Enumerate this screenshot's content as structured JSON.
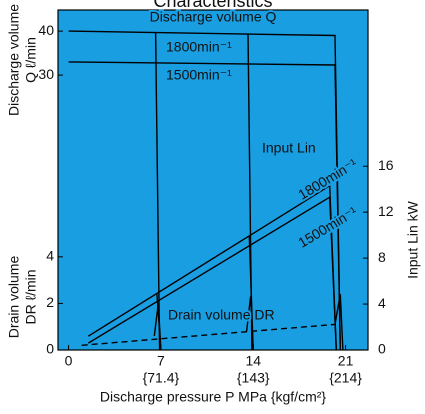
{
  "chart_data": [
    {
      "type": "line",
      "title": "Characteristics",
      "xlabel": "Discharge pressure P MPa {kgf/cm²}",
      "ylabel": [
        "Discharge volume",
        "Q ℓ/min"
      ],
      "y_axis": "left",
      "xlim": [
        -0.8,
        22.7
      ],
      "xticks": [
        0,
        7,
        14,
        21
      ],
      "xticks_kgf": [
        {
          "value": 7,
          "label": "{71.4}"
        },
        {
          "value": 14,
          "label": "{143}"
        },
        {
          "value": 21,
          "label": "{214}"
        }
      ],
      "ylim": [
        -32.5,
        44.8
      ],
      "yticks": [
        30,
        40
      ],
      "annotations": [
        "Discharge volume Q",
        "1800min⁻¹",
        "1500min⁻¹"
      ],
      "series": [
        {
          "x": [
            0,
            20.2,
            20.6
          ],
          "values": [
            40,
            39,
            -32.5
          ],
          "color": "#000000"
        },
        {
          "x": [
            0,
            20.2,
            20.6
          ],
          "values": [
            33,
            32.3,
            -32.5
          ],
          "color": "#000000"
        },
        {
          "x": [
            6.6,
            6.9
          ],
          "values": [
            39.8,
            -32.5
          ],
          "color": "#000000"
        },
        {
          "x": [
            13.6,
            13.9
          ],
          "values": [
            39.4,
            -32.5
          ],
          "color": "#000000"
        }
      ]
    },
    {
      "type": "line",
      "ylabel": [
        "Drain volume",
        "DR ℓ/min"
      ],
      "y_axis": "left",
      "xlim": [
        -0.8,
        22.7
      ],
      "ylim": [
        0,
        14.6
      ],
      "yticks": [
        0,
        2,
        4
      ],
      "annotations": [
        "Drain volume DR"
      ],
      "series": [
        {
          "x": [
            1,
            20.2
          ],
          "values": [
            0.2,
            1.1
          ],
          "color": "#000000",
          "dash": true
        },
        {
          "x": [
            6.5,
            6.8,
            7
          ],
          "values": [
            0.6,
            2,
            0
          ],
          "color": "#000000"
        },
        {
          "x": [
            13.5,
            13.8,
            14
          ],
          "values": [
            0.8,
            2.3,
            0
          ],
          "color": "#000000"
        },
        {
          "x": [
            20.2,
            20.6,
            20.8
          ],
          "values": [
            1.1,
            2.4,
            0
          ],
          "color": "#000000"
        }
      ]
    },
    {
      "type": "line",
      "ylabel": [
        "Input Lin kW"
      ],
      "y_axis": "right",
      "xlim": [
        -0.8,
        22.7
      ],
      "ylim": [
        0,
        29.6
      ],
      "yticks": [
        0,
        4,
        8,
        12,
        16
      ],
      "annotations": [
        "Input Lin",
        "1800min⁻¹",
        "1500min⁻¹"
      ],
      "series": [
        {
          "x": [
            1.5,
            19.8,
            20.3
          ],
          "values": [
            1.2,
            14.3,
            0
          ],
          "color": "#000000"
        },
        {
          "x": [
            1.5,
            19.8,
            20.3
          ],
          "values": [
            0.6,
            13.3,
            0
          ],
          "color": "#000000"
        },
        {
          "x": [
            6.7,
            7.0
          ],
          "values": [
            4.9,
            0
          ],
          "color": "#000000"
        },
        {
          "x": [
            13.7,
            14.0
          ],
          "values": [
            9.9,
            0
          ],
          "color": "#000000"
        }
      ]
    }
  ]
}
